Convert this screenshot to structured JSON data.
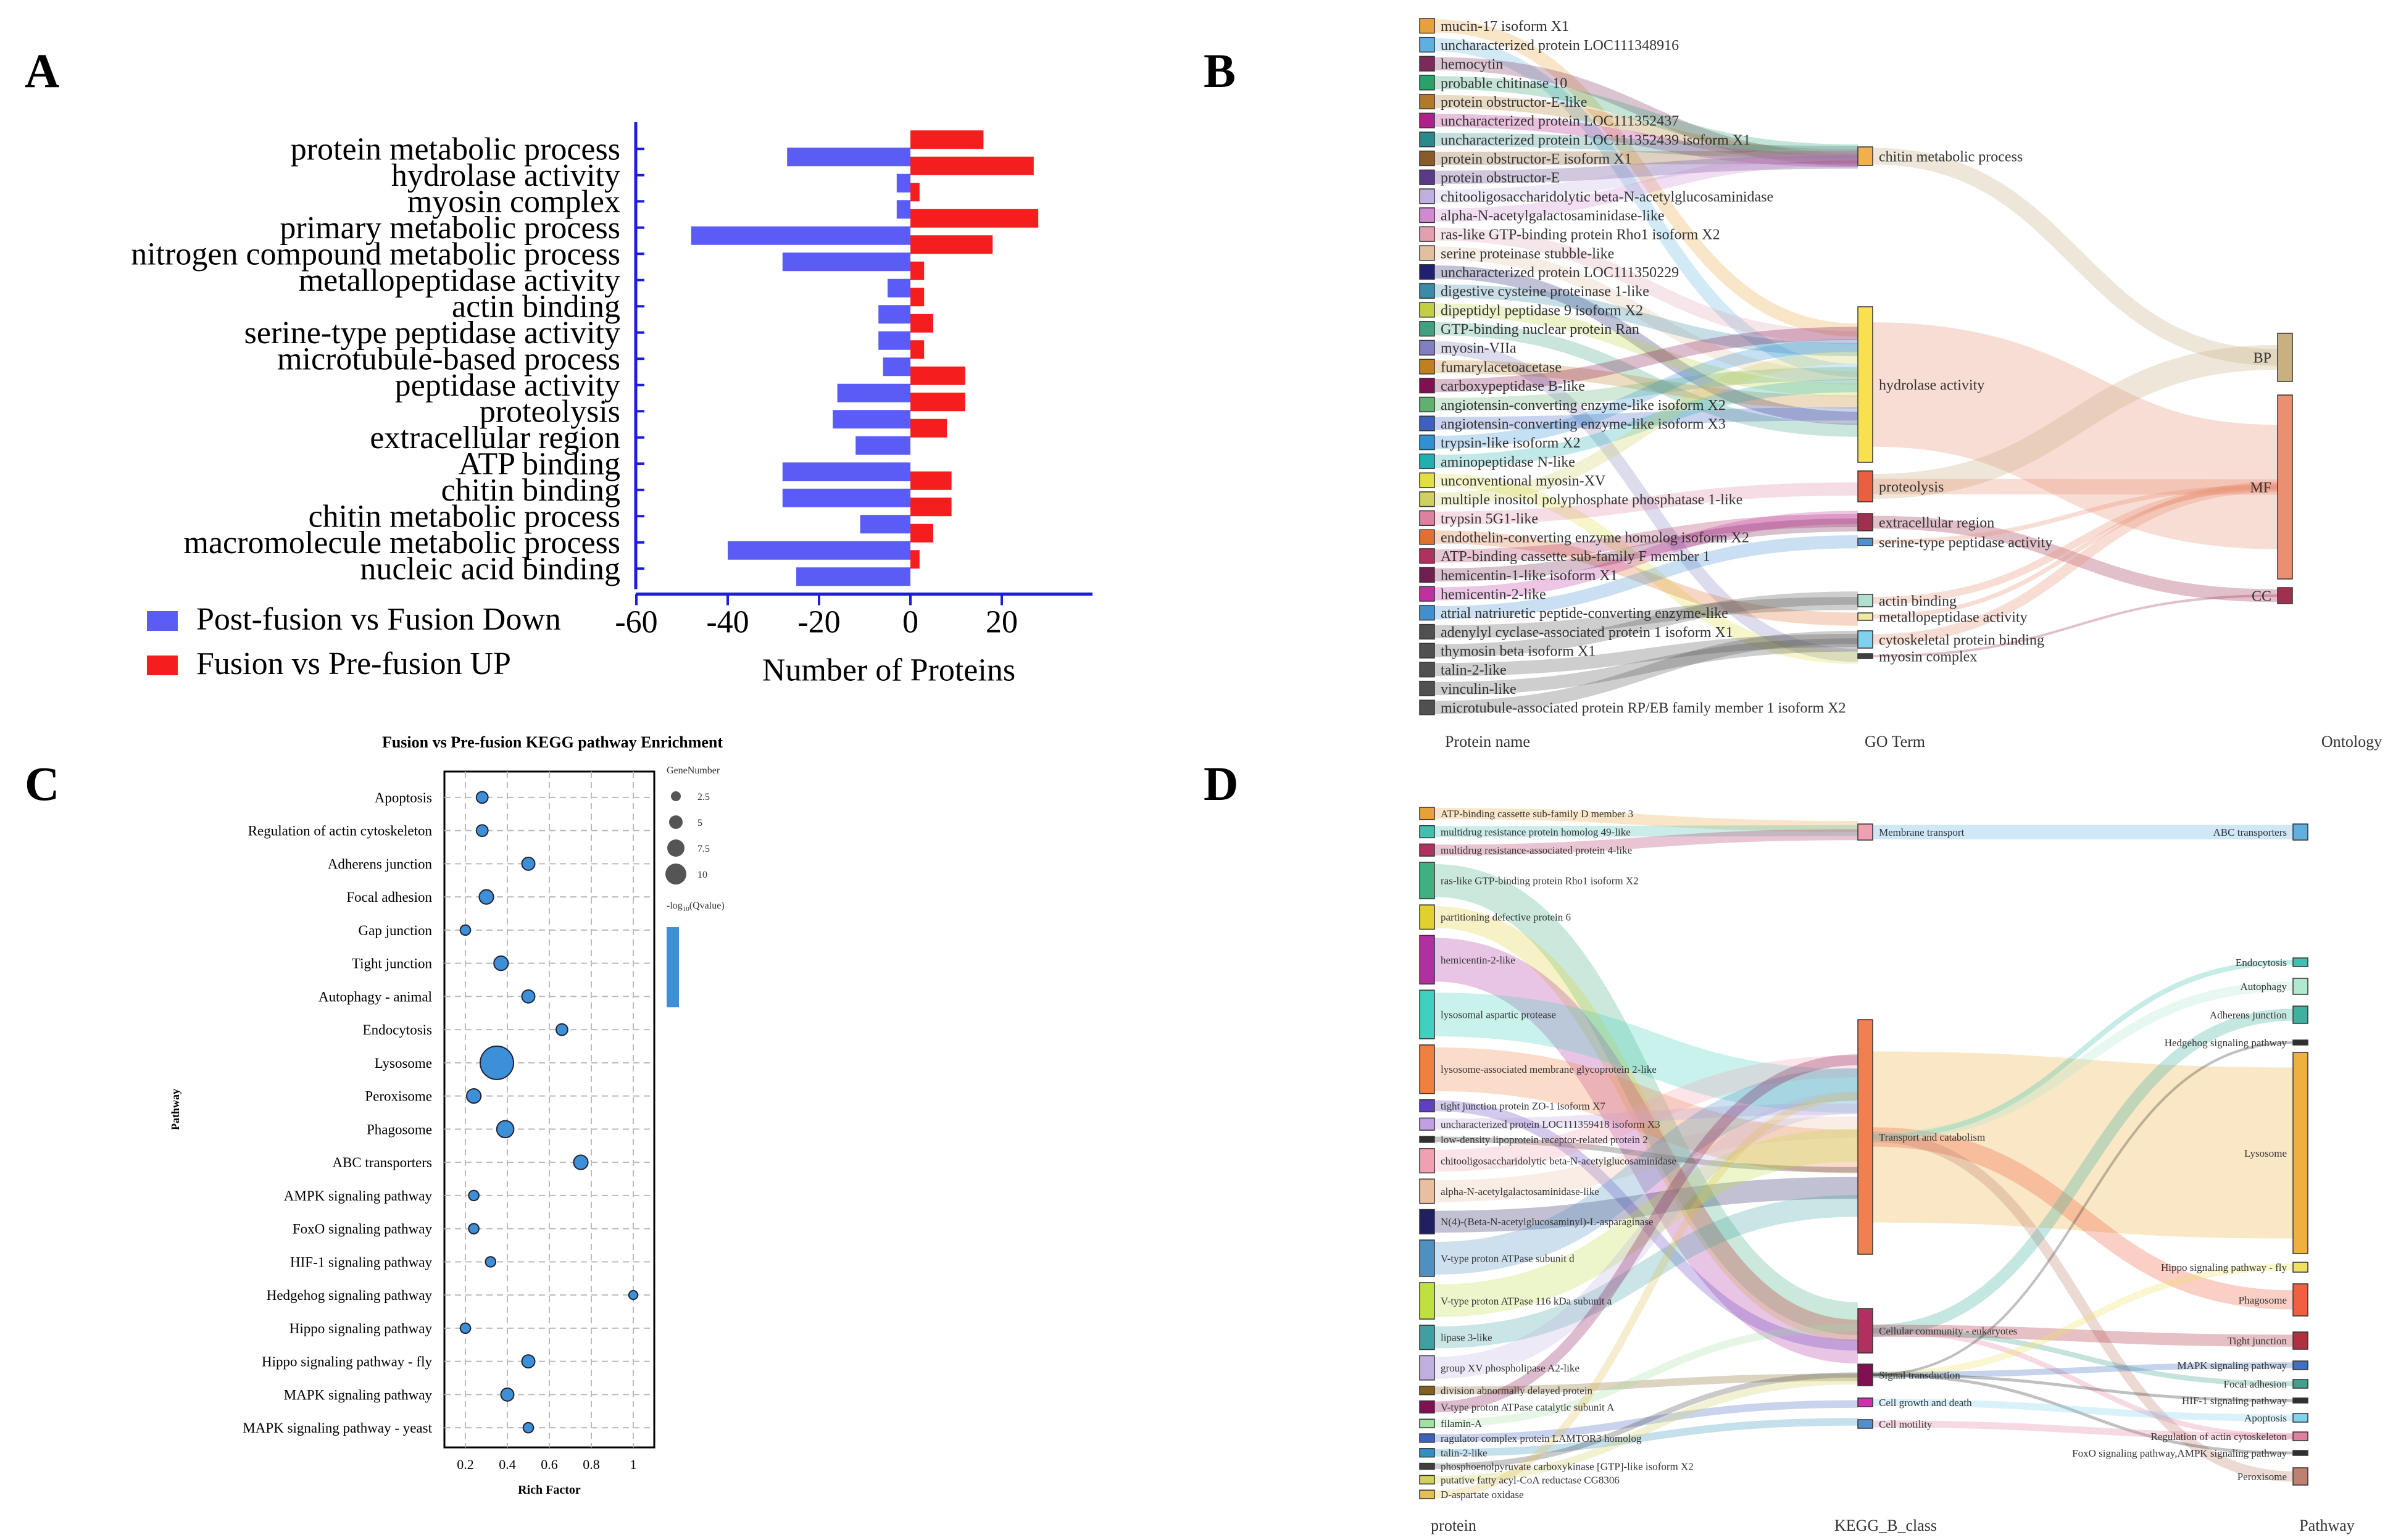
{
  "panel_labels": {
    "a": "A",
    "b": "B",
    "c": "C",
    "d": "D"
  },
  "chart_data": [
    {
      "id": "A",
      "type": "bar",
      "orientation": "horizontal",
      "categories": [
        "protein metabolic process",
        "hydrolase activity",
        "myosin complex",
        "primary metabolic process",
        "nitrogen compound metabolic process",
        "metallopeptidase activity",
        "actin binding",
        "serine-type peptidase activity",
        "microtubule-based process",
        "peptidase activity",
        "proteolysis",
        "extracellular region",
        "ATP binding",
        "chitin binding",
        "chitin metabolic process",
        "macromolecule metabolic process",
        "nucleic acid binding"
      ],
      "series": [
        {
          "name": "Post-fusion vs Fusion Down",
          "color": "#5b5bf5",
          "values": [
            -27,
            -3,
            -3,
            -48,
            -28,
            -5,
            -7,
            -7,
            -6,
            -16,
            -17,
            -12,
            -28,
            -28,
            -11,
            -40,
            -25
          ]
        },
        {
          "name": "Fusion vs Pre-fusion UP",
          "color": "#f51d1d",
          "values": [
            16,
            27,
            2,
            28,
            18,
            3,
            3,
            5,
            3,
            12,
            12,
            8,
            0,
            9,
            9,
            5,
            2
          ]
        }
      ],
      "xlabel": "Number of Proteins",
      "xticks": [
        -60,
        -40,
        -20,
        0,
        20
      ],
      "xlim": [
        -62,
        40
      ]
    },
    {
      "id": "C",
      "type": "scatter",
      "title": "Fusion vs Pre-fusion KEGG pathway Enrichment",
      "xlabel": "Rich Factor",
      "ylabel": "Pathway",
      "xticks": [
        "0.2",
        "0.4",
        "0.6",
        "0.8",
        "1"
      ],
      "xtick_values": [
        0.2,
        0.4,
        0.6,
        0.8,
        1.0
      ],
      "xlim": [
        0.1,
        1.1
      ],
      "size_legend_title": "GeneNumber",
      "size_legend": [
        "2.5",
        "5",
        "7.5",
        "10"
      ],
      "size_legend_values": [
        2.5,
        5,
        7.5,
        10
      ],
      "color_legend_title": "-log10(Qvalue)",
      "color_legend_title_parts": [
        "-log",
        "10",
        "(Qvalue)"
      ],
      "point_color": "#3d8fd8",
      "points": [
        {
          "pathway": "Apoptosis",
          "x": 0.28,
          "n": 2
        },
        {
          "pathway": "Regulation of actin cytoskeleton",
          "x": 0.28,
          "n": 2
        },
        {
          "pathway": "Adherens junction",
          "x": 0.5,
          "n": 2.5
        },
        {
          "pathway": "Focal adhesion",
          "x": 0.3,
          "n": 3
        },
        {
          "pathway": "Gap junction",
          "x": 0.2,
          "n": 1.5
        },
        {
          "pathway": "Tight junction",
          "x": 0.37,
          "n": 3
        },
        {
          "pathway": "Autophagy - animal",
          "x": 0.5,
          "n": 2.5
        },
        {
          "pathway": "Endocytosis",
          "x": 0.66,
          "n": 2
        },
        {
          "pathway": "Lysosome",
          "x": 0.35,
          "n": 10
        },
        {
          "pathway": "Peroxisome",
          "x": 0.24,
          "n": 3
        },
        {
          "pathway": "Phagosome",
          "x": 0.39,
          "n": 4
        },
        {
          "pathway": "ABC transporters",
          "x": 0.75,
          "n": 3
        },
        {
          "pathway": "AMPK signaling pathway",
          "x": 0.24,
          "n": 1.5
        },
        {
          "pathway": "FoxO signaling pathway",
          "x": 0.24,
          "n": 1.5
        },
        {
          "pathway": "HIF-1 signaling pathway",
          "x": 0.32,
          "n": 1.5
        },
        {
          "pathway": "Hedgehog signaling pathway",
          "x": 1.0,
          "n": 1
        },
        {
          "pathway": "Hippo signaling pathway",
          "x": 0.2,
          "n": 1.5
        },
        {
          "pathway": "Hippo signaling pathway - fly",
          "x": 0.5,
          "n": 2.5
        },
        {
          "pathway": "MAPK signaling pathway",
          "x": 0.4,
          "n": 2.5
        },
        {
          "pathway": "MAPK signaling pathway - yeast",
          "x": 0.5,
          "n": 1.5
        }
      ]
    }
  ],
  "sankey_b": {
    "headers": [
      "Protein name",
      "GO Term",
      "Ontology"
    ],
    "proteins": [
      {
        "label": "mucin-17 isoform X1",
        "color": "#e8a13a"
      },
      {
        "label": "uncharacterized protein LOC111348916",
        "color": "#5fb0e0"
      },
      {
        "label": "hemocytin",
        "color": "#7b2a5a"
      },
      {
        "label": "probable chitinase 10",
        "color": "#2aa06a"
      },
      {
        "label": "protein obstructor-E-like",
        "color": "#b07a2a"
      },
      {
        "label": "uncharacterized protein LOC111352437",
        "color": "#b0208a"
      },
      {
        "label": "uncharacterized protein LOC111352439 isoform X1",
        "color": "#2a8a8a"
      },
      {
        "label": "protein obstructor-E isoform X1",
        "color": "#8a5a2a"
      },
      {
        "label": "protein obstructor-E",
        "color": "#5a3a8a"
      },
      {
        "label": "chitooligosaccharidolytic beta-N-acetylglucosaminidase",
        "color": "#c0b0e0"
      },
      {
        "label": "alpha-N-acetylgalactosaminidase-like",
        "color": "#d08ad0"
      },
      {
        "label": "ras-like GTP-binding protein Rho1 isoform X2",
        "color": "#e0a0b0"
      },
      {
        "label": "serine proteinase stubble-like",
        "color": "#e0c0a0"
      },
      {
        "label": "uncharacterized protein LOC111350229",
        "color": "#202070"
      },
      {
        "label": "digestive cysteine proteinase 1-like",
        "color": "#3a8aaa"
      },
      {
        "label": "dipeptidyl peptidase 9 isoform X2",
        "color": "#c0d040"
      },
      {
        "label": "GTP-binding nuclear protein Ran",
        "color": "#40a080"
      },
      {
        "label": "myosin-VIIa",
        "color": "#8080c0"
      },
      {
        "label": "fumarylacetoacetase",
        "color": "#c08020"
      },
      {
        "label": "carboxypeptidase B-like",
        "color": "#801050"
      },
      {
        "label": "angiotensin-converting enzyme-like isoform X2",
        "color": "#60b070"
      },
      {
        "label": "angiotensin-converting enzyme-like isoform X3",
        "color": "#4060c0"
      },
      {
        "label": "trypsin-like isoform X2",
        "color": "#3090d0"
      },
      {
        "label": "aminopeptidase N-like",
        "color": "#20b0b0"
      },
      {
        "label": "unconventional myosin-XV",
        "color": "#e0e040"
      },
      {
        "label": "multiple inositol polyphosphate phosphatase 1-like",
        "color": "#d0d060"
      },
      {
        "label": "trypsin 5G1-like",
        "color": "#e080a0"
      },
      {
        "label": "endothelin-converting enzyme homolog isoform X2",
        "color": "#e07030"
      },
      {
        "label": "ATP-binding cassette sub-family F member 1",
        "color": "#b03060"
      },
      {
        "label": "hemicentin-1-like isoform X1",
        "color": "#702050"
      },
      {
        "label": "hemicentin-2-like",
        "color": "#c030a0"
      },
      {
        "label": "atrial natriuretic peptide-converting enzyme-like",
        "color": "#4090d0"
      },
      {
        "label": "adenylyl cyclase-associated protein 1 isoform X1",
        "color": "#505050"
      },
      {
        "label": "thymosin beta isoform X1",
        "color": "#505050"
      },
      {
        "label": "talin-2-like",
        "color": "#505050"
      },
      {
        "label": "vinculin-like",
        "color": "#505050"
      },
      {
        "label": "microtubule-associated protein RP/EB family member 1 isoform X2",
        "color": "#505050"
      }
    ],
    "go_terms": [
      {
        "label": "chitin metabolic process",
        "color": "#f0b050",
        "weight": 2
      },
      {
        "label": "hydrolase activity",
        "color": "#f8e050",
        "weight": 16
      },
      {
        "label": "proteolysis",
        "color": "#e86040",
        "weight": 3
      },
      {
        "label": "extracellular region",
        "color": "#a03050",
        "weight": 1.5
      },
      {
        "label": "serine-type peptidase activity",
        "color": "#5090d0",
        "weight": 1
      },
      {
        "label": "actin binding",
        "color": "#b0e0d0",
        "weight": 1
      },
      {
        "label": "metallopeptidase activity",
        "color": "#f0e8a0",
        "weight": 0.6
      },
      {
        "label": "cytoskeletal protein binding",
        "color": "#80d0f0",
        "weight": 1.5
      },
      {
        "label": "myosin complex",
        "color": "#404040",
        "weight": 0.5
      }
    ],
    "ontologies": [
      {
        "label": "BP",
        "color": "#c8b080"
      },
      {
        "label": "MF",
        "color": "#e89070"
      },
      {
        "label": "CC",
        "color": "#a03050"
      }
    ]
  },
  "sankey_d": {
    "headers": [
      "protein",
      "KEGG_B_class",
      "Pathway"
    ],
    "proteins": [
      {
        "label": "ATP-binding cassette sub-family D member 3",
        "color": "#e8a13a",
        "size": 1
      },
      {
        "label": "multidrug resistance protein homolog 49-like",
        "color": "#40c0b0",
        "size": 1
      },
      {
        "label": "multidrug resistance-associated protein 4-like",
        "color": "#b03060",
        "size": 1
      },
      {
        "label": "ras-like GTP-binding protein Rho1 isoform X2",
        "color": "#40b080",
        "size": 3
      },
      {
        "label": "partitioning defective protein 6",
        "color": "#e0d030",
        "size": 2
      },
      {
        "label": "hemicentin-2-like",
        "color": "#b030a0",
        "size": 4
      },
      {
        "label": "lysosomal aspartic protease",
        "color": "#40d0c0",
        "size": 4
      },
      {
        "label": "lysosome-associated membrane glycoprotein 2-like",
        "color": "#f08040",
        "size": 4
      },
      {
        "label": "tight junction protein ZO-1 isoform X7",
        "color": "#6040c0",
        "size": 1
      },
      {
        "label": "uncharacterized protein LOC111359418 isoform X3",
        "color": "#c0a0e0",
        "size": 1
      },
      {
        "label": "low-density lipoprotein receptor-related protein 2",
        "color": "#303030",
        "size": 0.5
      },
      {
        "label": "chitooligosaccharidolytic beta-N-acetylglucosaminidase",
        "color": "#f0a0b0",
        "size": 2
      },
      {
        "label": "alpha-N-acetylgalactosaminidase-like",
        "color": "#e8c0a0",
        "size": 2
      },
      {
        "label": "N(4)-(Beta-N-acetylglucosaminyl)-L-asparaginase",
        "color": "#202060",
        "size": 2
      },
      {
        "label": "V-type proton ATPase subunit d",
        "color": "#5090c0",
        "size": 3
      },
      {
        "label": "V-type proton ATPase 116 kDa subunit a",
        "color": "#c0e040",
        "size": 3
      },
      {
        "label": "lipase 3-like",
        "color": "#40a0a0",
        "size": 2
      },
      {
        "label": "group XV phospholipase A2-like",
        "color": "#c0b0e0",
        "size": 2
      },
      {
        "label": "division abnormally delayed protein",
        "color": "#806020",
        "size": 0.7
      },
      {
        "label": "V-type proton ATPase catalytic subunit A",
        "color": "#801050",
        "size": 1
      },
      {
        "label": "filamin-A",
        "color": "#a0e0a0",
        "size": 0.7
      },
      {
        "label": "ragulator complex protein LAMTOR3 homolog",
        "color": "#4060c0",
        "size": 0.7
      },
      {
        "label": "talin-2-like",
        "color": "#3090c0",
        "size": 0.7
      },
      {
        "label": "phosphoenolpyruvate carboxykinase [GTP]-like isoform X2",
        "color": "#404040",
        "size": 0.5
      },
      {
        "label": "putative fatty acyl-CoA reductase CG8306",
        "color": "#d0d060",
        "size": 0.7
      },
      {
        "label": "D-aspartate oxidase",
        "color": "#e0c050",
        "size": 0.7
      }
    ],
    "classes": [
      {
        "label": "Membrane transport",
        "color": "#f0a0b0",
        "size": 1.5
      },
      {
        "label": "Transport and catabolism",
        "color": "#f08050",
        "size": 20
      },
      {
        "label": "Cellular community - eukaryotes",
        "color": "#b03060",
        "size": 4
      },
      {
        "label": "Signal transduction",
        "color": "#801050",
        "size": 2
      },
      {
        "label": "Cell growth and death",
        "color": "#d030b0",
        "size": 0.8
      },
      {
        "label": "Cell motility",
        "color": "#5090d0",
        "size": 0.8
      }
    ],
    "pathways": [
      {
        "label": "ABC transporters",
        "color": "#5fb0e0",
        "size": 1.5
      },
      {
        "label": "Endocytosis",
        "color": "#40c0b0",
        "size": 0.6
      },
      {
        "label": "Autophagy",
        "color": "#b0e8d0",
        "size": 1.5
      },
      {
        "label": "Adherens junction",
        "color": "#40b0a0",
        "size": 1.5
      },
      {
        "label": "Hedgehog signaling pathway",
        "color": "#303030",
        "size": 0.4
      },
      {
        "label": "Lysosome",
        "color": "#f0b040",
        "size": 16
      },
      {
        "label": "Hippo signaling pathway - fly",
        "color": "#f0e060",
        "size": 0.8
      },
      {
        "label": "Phagosome",
        "color": "#f06040",
        "size": 3
      },
      {
        "label": "Tight junction",
        "color": "#b03040",
        "size": 1.5
      },
      {
        "label": "MAPK signaling pathway",
        "color": "#4070c0",
        "size": 0.6
      },
      {
        "label": "Focal adhesion",
        "color": "#40a090",
        "size": 0.6
      },
      {
        "label": "HIF-1 signaling pathway",
        "color": "#303030",
        "size": 0.4
      },
      {
        "label": "Apoptosis",
        "color": "#80d0f0",
        "size": 0.6
      },
      {
        "label": "Regulation of actin cytoskeleton",
        "color": "#e080a0",
        "size": 0.6
      },
      {
        "label": "FoxO signaling pathway,AMPK signaling pathway",
        "color": "#303030",
        "size": 0.4
      },
      {
        "label": "Peroxisome",
        "color": "#c08070",
        "size": 1.2
      }
    ]
  }
}
